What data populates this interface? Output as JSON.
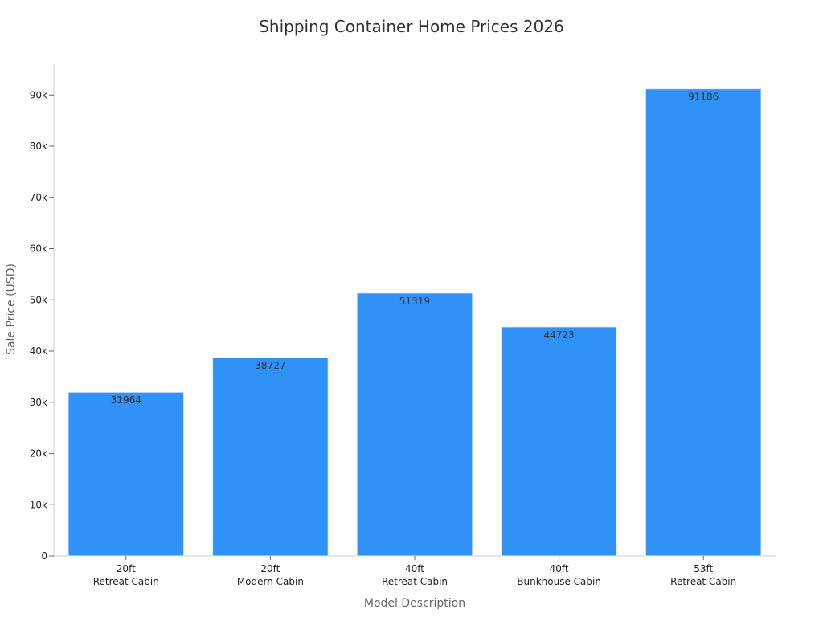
{
  "chart_data": {
    "type": "bar",
    "title": "Shipping Container Home Prices 2026",
    "xlabel": "Model Description",
    "ylabel": "Sale Price (USD)",
    "categories": [
      [
        "20ft",
        "Retreat Cabin"
      ],
      [
        "20ft",
        "Modern Cabin"
      ],
      [
        "40ft",
        "Retreat Cabin"
      ],
      [
        "40ft",
        "Bunkhouse Cabin"
      ],
      [
        "53ft",
        "Retreat Cabin"
      ]
    ],
    "values": [
      31964,
      38727,
      51319,
      44723,
      91186
    ],
    "data_labels": [
      "31964",
      "38727",
      "51319",
      "44723",
      "91186"
    ],
    "ylim": [
      0,
      96000
    ],
    "yticks": [
      0,
      10000,
      20000,
      30000,
      40000,
      50000,
      60000,
      70000,
      80000,
      90000
    ],
    "ytick_labels": [
      "0",
      "10k",
      "20k",
      "30k",
      "40k",
      "50k",
      "60k",
      "70k",
      "80k",
      "90k"
    ],
    "grid": false,
    "colors": {
      "bar": "#3091f7",
      "bar_edge": "#e6eefb"
    }
  }
}
